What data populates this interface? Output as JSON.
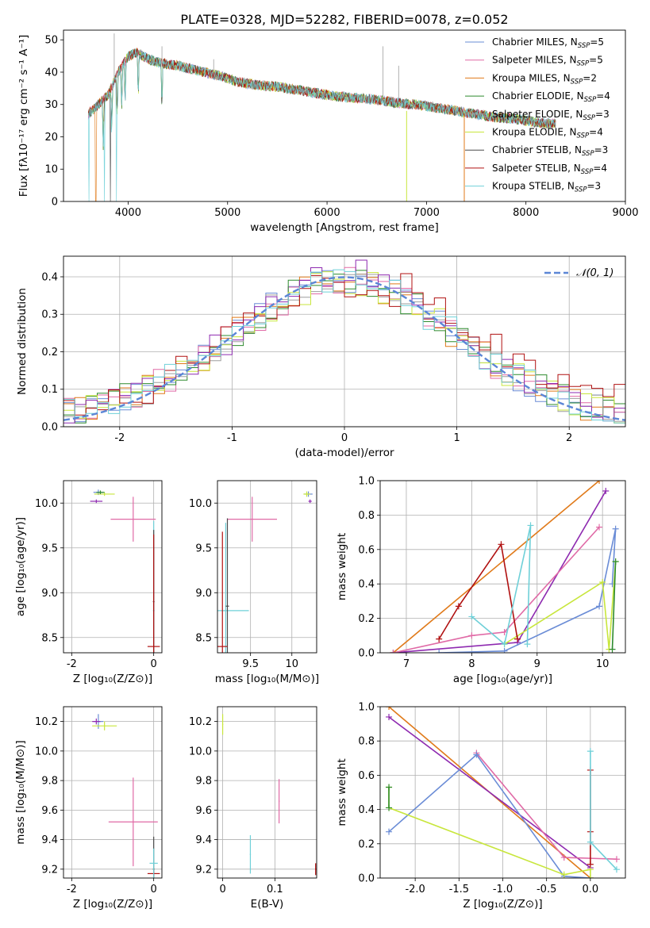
{
  "page": {
    "title": "PLATE=0328, MJD=52282, FIBERID=0078, z=0.052"
  },
  "colors": {
    "chabrier_miles": "#6a8cd6",
    "salpeter_miles": "#e06aa6",
    "kroupa_miles": "#e07a1a",
    "chabrier_elodie": "#2e8b2e",
    "salpeter_elodie": "#9e9e9e",
    "kroupa_elodie": "#c8e63c",
    "chabrier_stelib": "#4a4a4a",
    "salpeter_stelib": "#b01010",
    "kroupa_stelib": "#6fd0d8",
    "purple": "#8e2ab0",
    "gaussian": "#5b86d6"
  },
  "chart_data": [
    {
      "type": "line",
      "panel": "spectrum",
      "title": "PLATE=0328, MJD=52282, FIBERID=0078, z=0.052",
      "xlabel": "wavelength [Angstrom, rest frame]",
      "ylabel": "Flux [fλ10⁻¹⁷ erg cm⁻² s⁻¹ A⁻¹]",
      "xlim": [
        3350,
        9000
      ],
      "ylim": [
        0,
        53
      ],
      "xticks": [
        4000,
        5000,
        6000,
        7000,
        8000,
        9000
      ],
      "yticks": [
        0,
        10,
        20,
        30,
        40,
        50
      ],
      "legend_position": "top-right",
      "series": [
        {
          "name": "Chabrier MILES, N_SSP=5",
          "legend": "Chabrier MILES, N",
          "sub": "SSP",
          "suffix": "=5",
          "color": "#6a8cd6"
        },
        {
          "name": "Salpeter MILES, N_SSP=5",
          "legend": "Salpeter MILES, N",
          "sub": "SSP",
          "suffix": "=5",
          "color": "#e06aa6"
        },
        {
          "name": "Kroupa MILES, N_SSP=2",
          "legend": "Kroupa MILES, N",
          "sub": "SSP",
          "suffix": "=2",
          "color": "#e07a1a"
        },
        {
          "name": "Chabrier ELODIE, N_SSP=4",
          "legend": "Chabrier ELODIE, N",
          "sub": "SSP",
          "suffix": "=4",
          "color": "#2e8b2e"
        },
        {
          "name": "Salpeter ELODIE, N_SSP=3",
          "legend": "Salpeter ELODIE, N",
          "sub": "SSP",
          "suffix": "=3",
          "color": "#9e9e9e"
        },
        {
          "name": "Kroupa ELODIE, N_SSP=4",
          "legend": "Kroupa ELODIE, N",
          "sub": "SSP",
          "suffix": "=4",
          "color": "#c8e63c"
        },
        {
          "name": "Chabrier STELIB, N_SSP=3",
          "legend": "Chabrier STELIB, N",
          "sub": "SSP",
          "suffix": "=3",
          "color": "#4a4a4a"
        },
        {
          "name": "Salpeter STELIB, N_SSP=4",
          "legend": "Salpeter STELIB, N",
          "sub": "SSP",
          "suffix": "=4",
          "color": "#b01010"
        },
        {
          "name": "Kroupa STELIB, N_SSP=3",
          "legend": "Kroupa STELIB, N",
          "sub": "SSP",
          "suffix": "=3",
          "color": "#6fd0d8"
        }
      ],
      "continuum": {
        "x": [
          3600,
          3700,
          3800,
          3900,
          4000,
          4100,
          4200,
          4300,
          4500,
          4700,
          4900,
          5100,
          5300,
          5500,
          5700,
          5900,
          6100,
          6300,
          6500,
          6700,
          6900,
          7100,
          7300,
          7500,
          7700,
          7900,
          8100,
          8300
        ],
        "y": [
          27,
          30,
          33,
          40,
          45,
          46,
          44,
          43,
          42,
          40.5,
          39,
          37,
          36,
          35.5,
          34.5,
          33.5,
          32.5,
          32,
          31.5,
          30.5,
          30,
          29,
          28,
          27,
          26,
          25.5,
          24.5,
          24
        ]
      }
    },
    {
      "type": "line",
      "panel": "residual_histogram",
      "xlabel": "(data-model)/error",
      "ylabel": "Normed distribution",
      "xlim": [
        -2.5,
        2.5
      ],
      "ylim": [
        0,
        0.455
      ],
      "xticks": [
        -2,
        -1,
        0,
        1,
        2
      ],
      "yticks": [
        0.0,
        0.1,
        0.2,
        0.3,
        0.4
      ],
      "grid": true,
      "legend_position": "top-right",
      "reference": {
        "name": "𝒩(0, 1)",
        "mean": 0,
        "sigma": 1,
        "color": "#5b86d6"
      }
    },
    {
      "type": "scatter",
      "panel": "Z_vs_age",
      "xlabel": "Z [log₁₀(Z/Z⊙)]",
      "ylabel": "age  [log₁₀(age/yr)]",
      "xlim": [
        -2.2,
        0.2
      ],
      "ylim": [
        8.33,
        10.25
      ],
      "xticks": [
        -2,
        0
      ],
      "yticks": [
        8.5,
        9.0,
        9.5,
        10.0
      ],
      "grid": true,
      "points": [
        {
          "x": -1.35,
          "y": 10.12,
          "xerr": 0.12,
          "yerr": 0.03,
          "color": "#6a8cd6"
        },
        {
          "x": -1.2,
          "y": 10.1,
          "xerr": 0.25,
          "yerr": 0.02,
          "color": "#c8e63c"
        },
        {
          "x": -1.3,
          "y": 10.12,
          "xerr": 0.1,
          "yerr": 0.02,
          "color": "#2e8b2e"
        },
        {
          "x": -1.4,
          "y": 10.02,
          "xerr": 0.15,
          "yerr": 0.02,
          "color": "#8e2ab0"
        },
        {
          "x": -0.5,
          "y": 9.82,
          "xerr": 0.55,
          "yerr": 0.25,
          "color": "#e06aa6"
        },
        {
          "x": 0.0,
          "y": 8.8,
          "xerr": 0.02,
          "yerr": 1.0,
          "color": "#6fd0d8"
        },
        {
          "x": 0.0,
          "y": 8.9,
          "xerr": 0.02,
          "yerr": 0.8,
          "color": "#4a4a4a"
        },
        {
          "x": 0.0,
          "y": 8.4,
          "xerr": 0.15,
          "yerr": 1.25,
          "color": "#b01010"
        }
      ]
    },
    {
      "type": "scatter",
      "panel": "mass_vs_age",
      "xlabel": "mass [log₁₀(M/M⊙)]",
      "ylabel": "",
      "xlim": [
        9.1,
        10.3
      ],
      "ylim": [
        8.33,
        10.25
      ],
      "xticks": [
        9.5,
        10.0
      ],
      "yticks": [
        8.5,
        9.0,
        9.5,
        10.0
      ],
      "grid": true,
      "points": [
        {
          "x": 10.2,
          "y": 10.1,
          "xerr": 0.05,
          "yerr": 0.03,
          "color": "#6a8cd6"
        },
        {
          "x": 10.18,
          "y": 10.1,
          "xerr": 0.04,
          "yerr": 0.03,
          "color": "#c8e63c"
        },
        {
          "x": 10.22,
          "y": 10.02,
          "xerr": 0.02,
          "yerr": 0.02,
          "color": "#8e2ab0"
        },
        {
          "x": 9.52,
          "y": 9.82,
          "xerr": 0.3,
          "yerr": 0.25,
          "color": "#e06aa6"
        },
        {
          "x": 9.2,
          "y": 8.8,
          "xerr": 0.28,
          "yerr": 0.98,
          "color": "#6fd0d8"
        },
        {
          "x": 9.22,
          "y": 8.85,
          "xerr": 0.02,
          "yerr": 0.98,
          "color": "#4a4a4a"
        },
        {
          "x": 9.16,
          "y": 8.4,
          "xerr": 0.06,
          "yerr": 1.28,
          "color": "#b01010"
        }
      ]
    },
    {
      "type": "line",
      "panel": "age_vs_mass_weight",
      "xlabel": "age  [log₁₀(age/yr)]",
      "ylabel": "mass weight",
      "xlim": [
        6.6,
        10.35
      ],
      "ylim": [
        0,
        1
      ],
      "xticks": [
        7,
        8,
        9,
        10
      ],
      "yticks": [
        0.0,
        0.2,
        0.4,
        0.6,
        0.8,
        1.0
      ],
      "grid": true,
      "series": [
        {
          "color": "#e07a1a",
          "x": [
            6.8,
            9.95
          ],
          "y": [
            0.0,
            1.0
          ]
        },
        {
          "color": "#8e2ab0",
          "x": [
            6.8,
            8.7,
            10.05
          ],
          "y": [
            0.0,
            0.06,
            0.94
          ]
        },
        {
          "color": "#e06aa6",
          "x": [
            6.8,
            8.0,
            8.5,
            9.95
          ],
          "y": [
            0.0,
            0.1,
            0.12,
            0.73
          ]
        },
        {
          "color": "#6a8cd6",
          "x": [
            7.5,
            8.5,
            9.95,
            10.2,
            10.15
          ],
          "y": [
            0.0,
            0.01,
            0.27,
            0.72,
            0.4
          ]
        },
        {
          "color": "#c8e63c",
          "x": [
            8.5,
            10.0,
            10.1,
            10.2
          ],
          "y": [
            0.05,
            0.41,
            0.02,
            0.53
          ]
        },
        {
          "color": "#b01010",
          "x": [
            7.5,
            7.8,
            8.45,
            8.7
          ],
          "y": [
            0.08,
            0.27,
            0.63,
            0.08
          ]
        },
        {
          "color": "#6fd0d8",
          "x": [
            8.0,
            8.5,
            8.9,
            8.85
          ],
          "y": [
            0.21,
            0.05,
            0.74,
            0.05
          ]
        },
        {
          "color": "#2e8b2e",
          "x": [
            10.15,
            10.2
          ],
          "y": [
            0.02,
            0.53
          ]
        }
      ]
    },
    {
      "type": "scatter",
      "panel": "Z_vs_mass",
      "xlabel": "Z [log₁₀(Z/Z⊙)]",
      "ylabel": "mass [log₁₀(M/M⊙)]",
      "xlim": [
        -2.2,
        0.2
      ],
      "ylim": [
        9.14,
        10.3
      ],
      "xticks": [
        -2,
        0
      ],
      "yticks": [
        9.2,
        9.4,
        9.6,
        9.8,
        10.0,
        10.2
      ],
      "grid": true,
      "points": [
        {
          "x": -1.35,
          "y": 10.2,
          "xerr": 0.12,
          "yerr": 0.05,
          "color": "#6a8cd6"
        },
        {
          "x": -1.2,
          "y": 10.17,
          "xerr": 0.3,
          "yerr": 0.03,
          "color": "#c8e63c"
        },
        {
          "x": -1.4,
          "y": 10.2,
          "xerr": 0.1,
          "yerr": 0.02,
          "color": "#8e2ab0"
        },
        {
          "x": -0.5,
          "y": 9.52,
          "xerr": 0.6,
          "yerr": 0.3,
          "color": "#e06aa6"
        },
        {
          "x": 0.0,
          "y": 9.2,
          "xerr": 0.02,
          "yerr": 0.22,
          "color": "#4a4a4a"
        },
        {
          "x": 0.0,
          "y": 9.17,
          "xerr": 0.15,
          "yerr": 0.02,
          "color": "#b01010"
        },
        {
          "x": 0.0,
          "y": 9.24,
          "xerr": 0.1,
          "yerr": 0.1,
          "color": "#6fd0d8"
        }
      ]
    },
    {
      "type": "scatter",
      "panel": "ebv_vs_mass",
      "xlabel": "E(B-V)",
      "ylabel": "",
      "xlim": [
        -0.01,
        0.18
      ],
      "ylim": [
        9.14,
        10.3
      ],
      "xticks": [
        0.0,
        0.1
      ],
      "yticks": [
        9.2,
        9.4,
        9.6,
        9.8,
        10.0,
        10.2
      ],
      "grid": true,
      "points": [
        {
          "x": 0.0,
          "y": 10.18,
          "xerr": 0.001,
          "yerr": 0.07,
          "color": "#c8e63c"
        },
        {
          "x": 0.108,
          "y": 9.66,
          "xerr": 0.001,
          "yerr": 0.15,
          "color": "#e06aa6"
        },
        {
          "x": 0.053,
          "y": 9.3,
          "xerr": 0.001,
          "yerr": 0.13,
          "color": "#6fd0d8"
        },
        {
          "x": 0.178,
          "y": 9.2,
          "xerr": 0.001,
          "yerr": 0.04,
          "color": "#b01010"
        }
      ]
    },
    {
      "type": "line",
      "panel": "Z_vs_mass_weight",
      "xlabel": "Z [log₁₀(Z/Z⊙)]",
      "ylabel": "mass weight",
      "xlim": [
        -2.4,
        0.4
      ],
      "ylim": [
        0,
        1
      ],
      "xticks": [
        -2.0,
        -1.5,
        -1.0,
        -0.5,
        0.0
      ],
      "yticks": [
        0.0,
        0.2,
        0.4,
        0.6,
        0.8,
        1.0
      ],
      "grid": true,
      "series": [
        {
          "color": "#e07a1a",
          "x": [
            -2.3,
            0.0
          ],
          "y": [
            1.0,
            0.0
          ]
        },
        {
          "color": "#8e2ab0",
          "x": [
            -2.3,
            0.0
          ],
          "y": [
            0.94,
            0.06
          ]
        },
        {
          "color": "#e06aa6",
          "x": [
            -1.3,
            -0.3,
            0.3
          ],
          "y": [
            0.73,
            0.12,
            0.11
          ]
        },
        {
          "color": "#6a8cd6",
          "x": [
            -2.3,
            -1.3,
            -0.3,
            0.0
          ],
          "y": [
            0.27,
            0.72,
            0.01,
            0.0
          ]
        },
        {
          "color": "#c8e63c",
          "x": [
            -2.3,
            -2.3,
            -0.3,
            0.0,
            0.0
          ],
          "y": [
            0.53,
            0.41,
            0.02,
            0.05,
            0.0
          ]
        },
        {
          "color": "#b01010",
          "x": [
            0.0,
            0.0,
            0.0
          ],
          "y": [
            0.63,
            0.27,
            0.08
          ]
        },
        {
          "color": "#6fd0d8",
          "x": [
            0.0,
            0.0,
            0.3
          ],
          "y": [
            0.74,
            0.21,
            0.05
          ]
        },
        {
          "color": "#2e8b2e",
          "x": [
            -2.3,
            -2.3
          ],
          "y": [
            0.53,
            0.41
          ]
        }
      ]
    }
  ]
}
